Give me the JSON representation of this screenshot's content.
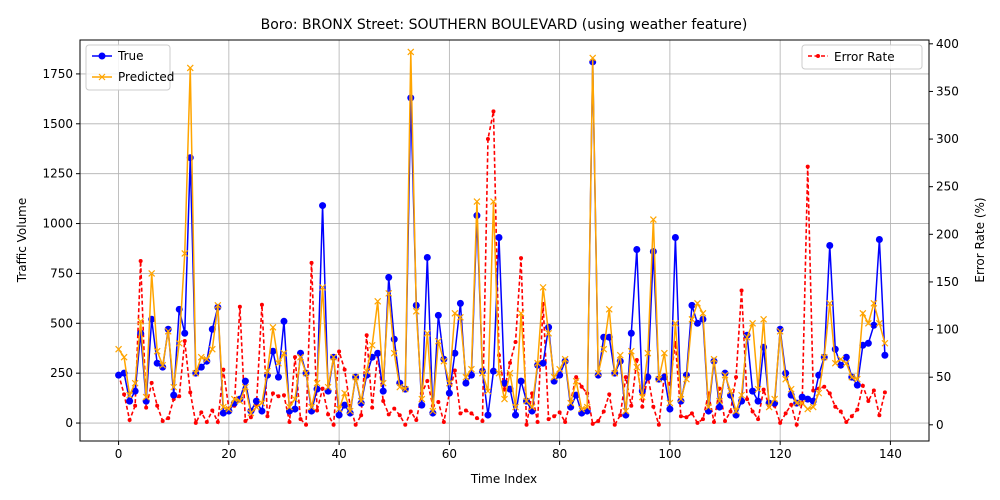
{
  "chart_data": {
    "type": "line",
    "title": "Boro: BRONX Street: SOUTHERN BOULEVARD (using weather feature)",
    "xlabel": "Time Index",
    "ylabel": "Traffic Volume",
    "y2label": "Error Rate (%)",
    "xlim": [
      -7,
      147
    ],
    "ylim": [
      -90,
      1920
    ],
    "y2lim": [
      -17,
      404
    ],
    "x_ticks": [
      "0",
      "20",
      "40",
      "60",
      "80",
      "100",
      "120",
      "140"
    ],
    "y_ticks": [
      "0",
      "250",
      "500",
      "750",
      "1000",
      "1250",
      "1500",
      "1750"
    ],
    "y2_ticks": [
      "0",
      "50",
      "100",
      "150",
      "200",
      "250",
      "300",
      "350",
      "400"
    ],
    "grid": true,
    "colors": {
      "true": "#0000ff",
      "predicted": "#ffa500",
      "error": "#ff0000"
    },
    "legend_left": {
      "placement": "upper-left",
      "entries": [
        "True",
        "Predicted"
      ]
    },
    "legend_right": {
      "placement": "upper-right",
      "entries": [
        "Error Rate"
      ]
    },
    "series": [
      {
        "name": "True",
        "values": [
          240,
          250,
          110,
          160,
          450,
          110,
          520,
          300,
          280,
          470,
          140,
          570,
          450,
          1330,
          250,
          280,
          310,
          470,
          580,
          50,
          60,
          100,
          120,
          210,
          60,
          110,
          60,
          240,
          360,
          230,
          510,
          60,
          70,
          350,
          250,
          60,
          170,
          1090,
          160,
          330,
          40,
          90,
          50,
          230,
          100,
          240,
          330,
          350,
          160,
          730,
          420,
          200,
          170,
          1630,
          590,
          90,
          830,
          50,
          540,
          320,
          150,
          350,
          600,
          200,
          240,
          1040,
          260,
          40,
          260,
          930,
          200,
          170,
          40,
          210,
          110,
          60,
          290,
          300,
          480,
          210,
          240,
          310,
          80,
          140,
          50,
          60,
          1810,
          240,
          430,
          430,
          250,
          310,
          40,
          450,
          870,
          160,
          230,
          860,
          220,
          230,
          70,
          930,
          110,
          240,
          590,
          500,
          520,
          60,
          310,
          80,
          250,
          140,
          40,
          110,
          440,
          160,
          110,
          380,
          100,
          100,
          470,
          250,
          140,
          100,
          130,
          120,
          110,
          240,
          330,
          890,
          370,
          290,
          330,
          230,
          190,
          390,
          400,
          490,
          920,
          340
        ]
      },
      {
        "name": "Predicted",
        "values": [
          370,
          330,
          140,
          200,
          510,
          130,
          750,
          360,
          290,
          460,
          180,
          400,
          850,
          1780,
          250,
          330,
          320,
          370,
          590,
          80,
          70,
          120,
          110,
          180,
          50,
          80,
          100,
          260,
          480,
          300,
          350,
          80,
          120,
          330,
          250,
          80,
          200,
          680,
          180,
          330,
          70,
          150,
          60,
          230,
          110,
          260,
          390,
          610,
          200,
          650,
          350,
          180,
          170,
          1860,
          560,
          120,
          450,
          60,
          410,
          310,
          200,
          550,
          530,
          230,
          270,
          1110,
          250,
          160,
          1110,
          250,
          120,
          250,
          80,
          550,
          110,
          80,
          300,
          680,
          450,
          230,
          270,
          320,
          100,
          210,
          70,
          80,
          1830,
          250,
          370,
          570,
          250,
          340,
          60,
          360,
          280,
          130,
          350,
          1020,
          220,
          350,
          100,
          500,
          120,
          220,
          520,
          600,
          550,
          80,
          320,
          110,
          240,
          160,
          60,
          140,
          430,
          500,
          170,
          520,
          80,
          120,
          460,
          220,
          170,
          100,
          100,
          70,
          80,
          150,
          330,
          600,
          300,
          320,
          300,
          230,
          220,
          550,
          500,
          600,
          500,
          400
        ]
      },
      {
        "name": "Error Rate",
        "values": [
          53,
          32,
          5,
          20,
          172,
          18,
          44,
          20,
          4,
          7,
          27,
          30,
          88,
          34,
          2,
          13,
          3,
          15,
          3,
          58,
          17,
          20,
          124,
          4,
          8,
          20,
          126,
          9,
          33,
          30,
          31,
          3,
          71,
          6,
          0,
          170,
          15,
          38,
          11,
          0,
          77,
          58,
          20,
          0,
          10,
          94,
          18,
          74,
          25,
          11,
          17,
          10,
          0,
          14,
          5,
          33,
          46,
          20,
          24,
          3,
          33,
          57,
          12,
          15,
          12,
          7,
          4,
          300,
          329,
          73,
          37,
          65,
          87,
          175,
          0,
          33,
          3,
          127,
          6,
          9,
          13,
          3,
          25,
          50,
          40,
          33,
          1,
          4,
          14,
          32,
          0,
          10,
          50,
          20,
          68,
          19,
          52,
          19,
          0,
          52,
          43,
          86,
          9,
          8,
          12,
          2,
          6,
          33,
          3,
          38,
          4,
          14,
          50,
          141,
          27,
          14,
          6,
          37,
          20,
          20,
          2,
          12,
          21,
          0,
          23,
          271,
          36,
          38,
          40,
          33,
          19,
          14,
          3,
          9,
          16,
          41,
          25,
          36,
          10,
          34
        ]
      }
    ]
  }
}
